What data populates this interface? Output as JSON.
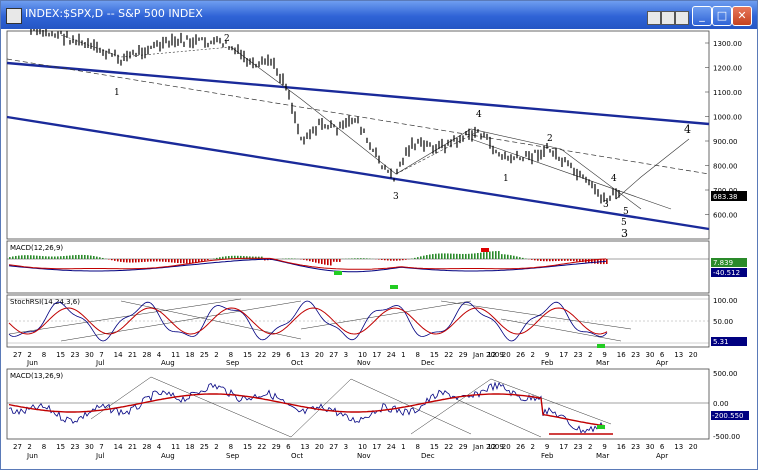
{
  "window": {
    "title": "INDEX:$SPX,D -- S&P 500 INDEX",
    "buttons": [
      "_",
      "□",
      "✕"
    ]
  },
  "colors": {
    "channel": "#1a2a9a",
    "price": "#000000",
    "macd_line": "#000080",
    "signal_line": "#c00000",
    "hist_pos": "#2a8a2a",
    "hist_neg": "#c00000",
    "marker_green": "#22cc22",
    "marker_red": "#dd0000",
    "last_label_bg": "#000000"
  },
  "price_panel": {
    "y_ticks": [
      "1300.00",
      "1200.00",
      "1100.00",
      "1000.00",
      "900.00",
      "800.00",
      "700.00",
      "600.00"
    ],
    "last_value": "683.38",
    "wave_labels": [
      "1",
      "2",
      "3",
      "4",
      "1",
      "2",
      "3",
      "4",
      "5",
      "5",
      "4",
      "3"
    ]
  },
  "macd_panel": {
    "title": "MACD(12,26,9)",
    "v1": "7.839",
    "v2": "-40.512"
  },
  "stoch_panel": {
    "title": "StochRSI(14,24,3,6)",
    "y_ticks": [
      "100.00",
      "50.00",
      "0.00"
    ],
    "last_value": "5.31"
  },
  "axis1": {
    "days": [
      "27",
      "2",
      "8",
      "15",
      "23",
      "30",
      "7",
      "14",
      "21",
      "28",
      "4",
      "11",
      "18",
      "25",
      "2",
      "8",
      "15",
      "22",
      "29",
      "6",
      "13",
      "20",
      "27",
      "3",
      "10",
      "17",
      "24",
      "1",
      "8",
      "15",
      "22",
      "29",
      "Jan 2009",
      "12",
      "20",
      "26",
      "2",
      "9",
      "17",
      "23",
      "2",
      "9",
      "16",
      "23",
      "30",
      "6",
      "13",
      "20"
    ],
    "months": [
      "Jun",
      "Jul",
      "Aug",
      "Sep",
      "Oct",
      "Nov",
      "Dec",
      "Feb",
      "Mar",
      "Apr"
    ]
  },
  "bottom_panel": {
    "title": "MACD(13,26,9)",
    "y_ticks": [
      "500.00",
      "0.00",
      "-500.00"
    ],
    "last_value": "-200.550"
  },
  "axis2": {
    "days": [
      "27",
      "2",
      "8",
      "15",
      "23",
      "30",
      "7",
      "14",
      "21",
      "28",
      "4",
      "11",
      "18",
      "25",
      "2",
      "8",
      "15",
      "22",
      "29",
      "6",
      "13",
      "20",
      "27",
      "3",
      "10",
      "17",
      "24",
      "1",
      "8",
      "15",
      "22",
      "29",
      "Jan 2009",
      "12",
      "20",
      "26",
      "2",
      "9",
      "17",
      "23",
      "2",
      "9",
      "16",
      "23",
      "30",
      "6",
      "13",
      "20"
    ],
    "months": [
      "Jun",
      "Jul",
      "Aug",
      "Sep",
      "Oct",
      "Nov",
      "Dec",
      "Feb",
      "Mar",
      "Apr"
    ]
  }
}
